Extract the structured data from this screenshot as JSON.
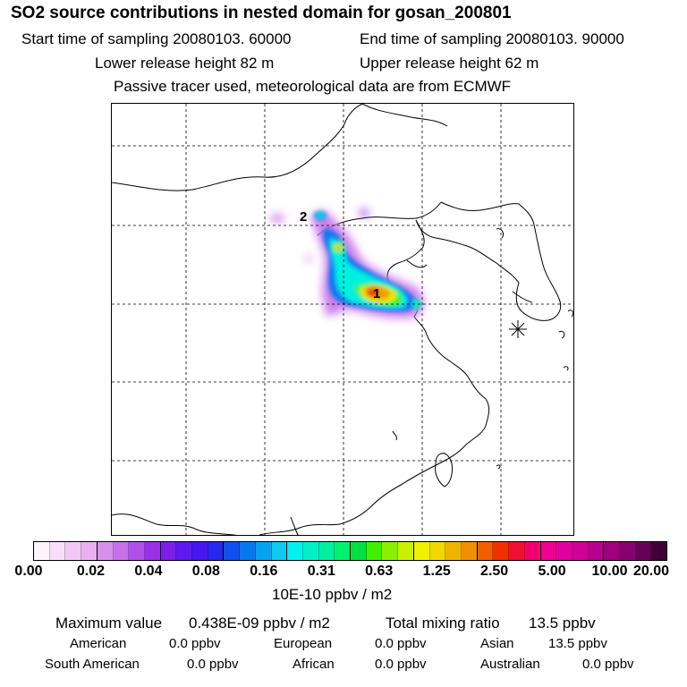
{
  "header": {
    "title": "SO2 source contributions in nested domain for gosan_200801",
    "start_label": "Start time of sampling 20080103. 60000",
    "end_label": "End time of sampling 20080103. 90000",
    "lower_label": "Lower release height   82 m",
    "upper_label": "Upper release height   62 m",
    "note": "Passive tracer used, meteorological data are from ECMWF"
  },
  "map": {
    "markers": [
      {
        "label": "1"
      },
      {
        "label": "2"
      }
    ]
  },
  "colorbar": {
    "ticks": [
      "0.00",
      "0.02",
      "0.04",
      "0.08",
      "0.16",
      "0.31",
      "0.63",
      "1.25",
      "2.50",
      "5.00",
      "10.00",
      "20.00"
    ],
    "unit": "10E-10 ppbv / m2",
    "colors": [
      "#fdf3fd",
      "#f8dff8",
      "#f2c8f4",
      "#ebb0f0",
      "#d890ec",
      "#c870ea",
      "#b050e8",
      "#9a30e8",
      "#7d1ee8",
      "#6018f0",
      "#4418f2",
      "#2828f0",
      "#1050f0",
      "#0878f0",
      "#0aa0f0",
      "#10c8f0",
      "#00f0f0",
      "#00f0c8",
      "#00f0a0",
      "#00f070",
      "#00e040",
      "#40f000",
      "#88f000",
      "#c8f000",
      "#f0f000",
      "#f0d800",
      "#f0b400",
      "#f09000",
      "#f06000",
      "#f03000",
      "#f01030",
      "#f00070",
      "#f00090",
      "#e000a0",
      "#d00098",
      "#b80090",
      "#a00080",
      "#880070",
      "#680058",
      "#400038"
    ]
  },
  "summary": {
    "max_label": "Maximum value",
    "max_value": "0.438E-09 ppbv / m2",
    "total_label": "Total mixing ratio",
    "total_value": "13.5 ppbv",
    "regions": [
      {
        "name": "American",
        "value": "0.0 ppbv"
      },
      {
        "name": "European",
        "value": "0.0 ppbv"
      },
      {
        "name": "Asian",
        "value": "13.5 ppbv"
      },
      {
        "name": "South American",
        "value": "0.0 ppbv"
      },
      {
        "name": "African",
        "value": "0.0 ppbv"
      },
      {
        "name": "Australian",
        "value": "0.0 ppbv"
      }
    ]
  }
}
